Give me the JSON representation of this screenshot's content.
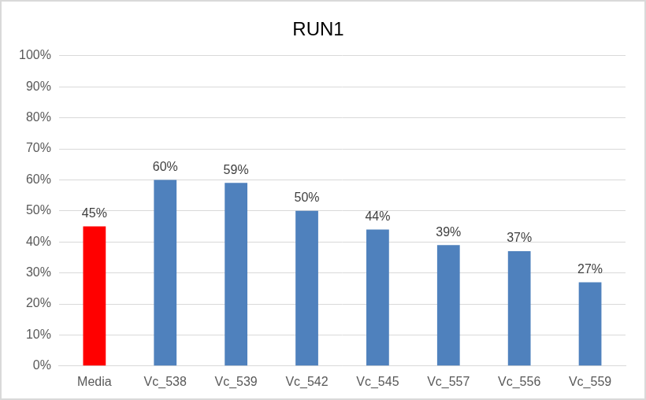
{
  "chart_data": {
    "type": "bar",
    "title": "RUN1",
    "categories": [
      "Media",
      "Vc_538",
      "Vc_539",
      "Vc_542",
      "Vc_545",
      "Vc_557",
      "Vc_556",
      "Vc_559"
    ],
    "values": [
      45,
      60,
      59,
      50,
      44,
      39,
      37,
      27
    ],
    "value_labels": [
      "45%",
      "60%",
      "59%",
      "50%",
      "44%",
      "39%",
      "37%",
      "27%"
    ],
    "colors": [
      "#ff0000",
      "#4f81bd",
      "#4f81bd",
      "#4f81bd",
      "#4f81bd",
      "#4f81bd",
      "#4f81bd",
      "#4f81bd"
    ],
    "ylim": [
      0,
      100
    ],
    "yticks": [
      {
        "value": 0,
        "label": "0%"
      },
      {
        "value": 10,
        "label": "10%"
      },
      {
        "value": 20,
        "label": "20%"
      },
      {
        "value": 30,
        "label": "30%"
      },
      {
        "value": 40,
        "label": "40%"
      },
      {
        "value": 50,
        "label": "50%"
      },
      {
        "value": 60,
        "label": "60%"
      },
      {
        "value": 70,
        "label": "70%"
      },
      {
        "value": 80,
        "label": "80%"
      },
      {
        "value": 90,
        "label": "90%"
      },
      {
        "value": 100,
        "label": "100%"
      }
    ],
    "grid": true,
    "data_labels": true
  }
}
